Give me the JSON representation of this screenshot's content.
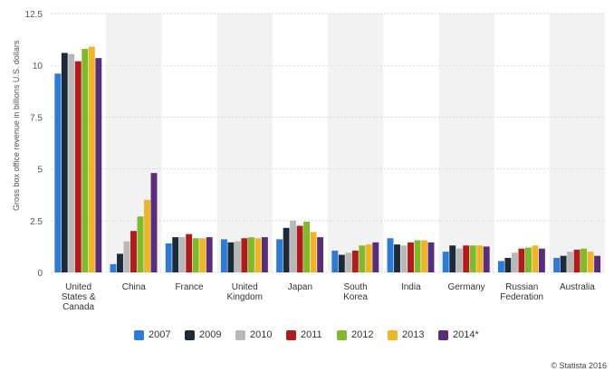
{
  "chart_data": {
    "type": "bar",
    "ylabel": "Gross box office revenue in billions U.S. dollars",
    "ylim": [
      0,
      12.5
    ],
    "yticks": [
      "0",
      "2.5",
      "5",
      "7.5",
      "10",
      "12.5"
    ],
    "categories": [
      [
        "United",
        "States &",
        "Canada"
      ],
      [
        "China"
      ],
      [
        "France"
      ],
      [
        "United",
        "Kingdom"
      ],
      [
        "Japan"
      ],
      [
        "South",
        "Korea"
      ],
      [
        "India"
      ],
      [
        "Germany"
      ],
      [
        "Russian",
        "Federation"
      ],
      [
        "Australia"
      ]
    ],
    "series": [
      {
        "name": "2007",
        "color": "#2e7bd6",
        "values": [
          9.6,
          0.4,
          1.4,
          1.6,
          1.6,
          1.05,
          1.65,
          1.0,
          0.55,
          0.7
        ]
      },
      {
        "name": "2009",
        "color": "#1c2b3a",
        "values": [
          10.6,
          0.9,
          1.7,
          1.45,
          2.15,
          0.85,
          1.35,
          1.3,
          0.7,
          0.8
        ]
      },
      {
        "name": "2010",
        "color": "#b8b8b8",
        "values": [
          10.55,
          1.5,
          1.7,
          1.5,
          2.5,
          0.95,
          1.3,
          1.15,
          0.95,
          1.0
        ]
      },
      {
        "name": "2011",
        "color": "#b01c1c",
        "values": [
          10.2,
          2.0,
          1.85,
          1.65,
          2.25,
          1.05,
          1.45,
          1.3,
          1.15,
          1.1
        ]
      },
      {
        "name": "2012",
        "color": "#7fba2c",
        "values": [
          10.8,
          2.7,
          1.65,
          1.7,
          2.45,
          1.3,
          1.55,
          1.3,
          1.2,
          1.15
        ]
      },
      {
        "name": "2013",
        "color": "#f0b429",
        "values": [
          10.9,
          3.5,
          1.65,
          1.65,
          1.95,
          1.35,
          1.55,
          1.3,
          1.3,
          1.0
        ]
      },
      {
        "name": "2014*",
        "color": "#5a2d7a",
        "values": [
          10.35,
          4.8,
          1.7,
          1.7,
          1.7,
          1.45,
          1.45,
          1.25,
          1.15,
          0.8
        ]
      }
    ],
    "grid": true,
    "legend": "bottom-center"
  },
  "credit": "© Statista 2016"
}
